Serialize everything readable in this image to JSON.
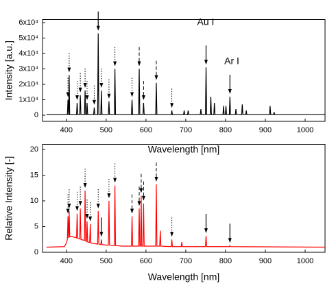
{
  "chart_data": [
    {
      "type": "line",
      "xlabel": "Wavelength [nm]",
      "ylabel": "Intensity [a.u.]",
      "xlim": [
        340,
        1050
      ],
      "xticks": [
        400,
        500,
        600,
        700,
        800,
        900,
        1000
      ],
      "ylim": [
        -4000,
        62000
      ],
      "yticks": [
        0,
        {
          "value": 10000,
          "label": "1x10⁴"
        },
        {
          "value": 20000,
          "label": "2x10⁴"
        },
        {
          "value": 30000,
          "label": "3x10⁴"
        },
        {
          "value": 40000,
          "label": "4x10⁴"
        },
        {
          "value": 50000,
          "label": "5x10⁴"
        },
        {
          "value": 60000,
          "label": "6x10⁴"
        }
      ],
      "annotations": [
        "Au I",
        "Ar I"
      ],
      "series": [
        {
          "color": "#000000",
          "x": [
            350,
            400,
            402.5,
            404,
            405.5,
            405.7,
            407,
            408.3,
            425.5,
            427,
            428.5,
            433.5,
            435,
            436.5,
            445.5,
            447,
            448.5,
            450.5,
            452,
            453.5,
            468.5,
            470,
            471.5,
            478.5,
            480,
            481.5,
            486.5,
            488,
            489.5,
            505.5,
            507,
            508.5,
            520.5,
            522,
            523.5,
            563.5,
            565,
            566.5,
            581.5,
            583,
            584.5,
            592.5,
            594,
            595.5,
            624.5,
            626,
            627.5,
            663.5,
            665,
            666.5,
            694.5,
            696,
            697.5,
            704.5,
            706,
            707.5,
            736.5,
            738,
            739.5,
            749.5,
            751,
            752.5,
            761.5,
            763,
            764.5,
            770.5,
            772,
            773.5,
            793.5,
            795,
            796.5,
            799.5,
            801,
            802.5,
            809.5,
            811,
            812.5,
            824.5,
            826,
            827.5,
            840.5,
            842,
            843.5,
            850.5,
            852,
            853.5,
            910.5,
            912,
            913.5,
            920.5,
            922,
            923.5,
            1050
          ],
          "values": [
            300,
            300,
            300,
            10000,
            300,
            300,
            26000,
            300,
            300,
            8000,
            300,
            300,
            13000,
            300,
            300,
            16000,
            300,
            300,
            8000,
            300,
            300,
            5000,
            300,
            300,
            53000,
            300,
            300,
            16000,
            300,
            300,
            9000,
            300,
            300,
            30000,
            300,
            300,
            10000,
            300,
            300,
            30000,
            300,
            300,
            8000,
            300,
            300,
            21000,
            300,
            300,
            3000,
            300,
            300,
            3000,
            300,
            300,
            3000,
            300,
            300,
            4000,
            300,
            300,
            31000,
            300,
            300,
            12000,
            300,
            300,
            8000,
            300,
            300,
            6000,
            300,
            300,
            6000,
            300,
            300,
            12000,
            300,
            300,
            4000,
            300,
            300,
            7000,
            300,
            300,
            3000,
            300,
            300,
            6000,
            300,
            300,
            2000,
            300,
            300
          ]
        }
      ],
      "markers": [
        {
          "x": 404,
          "style": "dotted"
        },
        {
          "x": 407,
          "style": "dotted"
        },
        {
          "x": 427,
          "style": "dotted"
        },
        {
          "x": 435,
          "style": "dotted"
        },
        {
          "x": 447,
          "style": "dotted"
        },
        {
          "x": 452,
          "style": "dotted"
        },
        {
          "x": 470,
          "style": "dotted"
        },
        {
          "x": 480,
          "style": "solid"
        },
        {
          "x": 488,
          "style": "dotted"
        },
        {
          "x": 507,
          "style": "dotted"
        },
        {
          "x": 522,
          "style": "dotted"
        },
        {
          "x": 565,
          "style": "dotted"
        },
        {
          "x": 583,
          "style": "dashed"
        },
        {
          "x": 594,
          "style": "dashed"
        },
        {
          "x": 626,
          "style": "dashed"
        },
        {
          "x": 665,
          "style": "dotted"
        },
        {
          "x": 751,
          "style": "solid"
        },
        {
          "x": 811,
          "style": "solid"
        }
      ]
    },
    {
      "type": "line",
      "xlabel": "Wavelength [nm]",
      "ylabel": "Relative Intensity [-]",
      "xlim": [
        340,
        1050
      ],
      "xticks": [
        400,
        500,
        600,
        700,
        800,
        900,
        1000
      ],
      "ylim": [
        0,
        21
      ],
      "yticks": [
        0,
        5,
        10,
        15,
        20
      ],
      "series": [
        {
          "color": "#ff0000",
          "x": [
            350,
            395,
            400,
            402.5,
            404,
            405.5,
            406,
            407,
            408.5,
            412,
            425.5,
            427,
            428.5,
            433.5,
            435,
            436.5,
            445.5,
            447,
            448.5,
            450.5,
            452,
            453.5,
            458.5,
            460,
            461.5,
            470,
            478.5,
            480,
            481.5,
            486.5,
            488,
            489.5,
            500,
            505.5,
            507,
            508.5,
            520.5,
            522,
            523.5,
            540,
            563.5,
            565,
            566.5,
            581.5,
            583,
            584.5,
            586.5,
            588,
            589.5,
            592.5,
            594,
            595.5,
            624.5,
            626,
            627.5,
            634.5,
            636,
            637.5,
            663.5,
            665,
            666.5,
            688.5,
            690,
            691.5,
            749.5,
            751,
            752.5,
            809.5,
            811,
            812.5,
            1050
          ],
          "values": [
            1.0,
            1.1,
            1.8,
            2.5,
            7,
            2.8,
            2.9,
            8,
            3.0,
            3.1,
            2.8,
            7.5,
            2.7,
            2.6,
            8.5,
            2.5,
            2.3,
            12,
            2.2,
            2.1,
            6,
            2.0,
            1.9,
            5.5,
            1.8,
            1.7,
            1.6,
            8,
            1.6,
            1.5,
            2.5,
            1.5,
            1.4,
            1.4,
            10,
            1.4,
            1.3,
            13,
            1.3,
            1.2,
            1.2,
            7,
            1.2,
            1.2,
            8.5,
            1.2,
            1.2,
            11,
            1.2,
            1.2,
            9.5,
            1.2,
            1.2,
            13.2,
            1.2,
            1.2,
            4.2,
            1.2,
            1.1,
            2.5,
            1.1,
            1.1,
            2.0,
            1.1,
            1.1,
            3.2,
            1.1,
            1.1,
            1.3,
            1.1,
            1.0
          ]
        }
      ],
      "markers": [
        {
          "x": 404,
          "style": "dotted"
        },
        {
          "x": 407,
          "style": "dotted"
        },
        {
          "x": 427,
          "style": "dotted"
        },
        {
          "x": 435,
          "style": "dotted"
        },
        {
          "x": 447,
          "style": "dotted"
        },
        {
          "x": 452,
          "style": "dotted"
        },
        {
          "x": 460,
          "style": "dotted"
        },
        {
          "x": 480,
          "style": "dotted"
        },
        {
          "x": 488,
          "style": "solid"
        },
        {
          "x": 507,
          "style": "dotted"
        },
        {
          "x": 522,
          "style": "dotted"
        },
        {
          "x": 565,
          "style": "dashed"
        },
        {
          "x": 583,
          "style": "dashed"
        },
        {
          "x": 588,
          "style": "dashed"
        },
        {
          "x": 594,
          "style": "dashed"
        },
        {
          "x": 626,
          "style": "dashed"
        },
        {
          "x": 665,
          "style": "dotted"
        },
        {
          "x": 751,
          "style": "solid"
        },
        {
          "x": 811,
          "style": "solid"
        }
      ]
    }
  ]
}
